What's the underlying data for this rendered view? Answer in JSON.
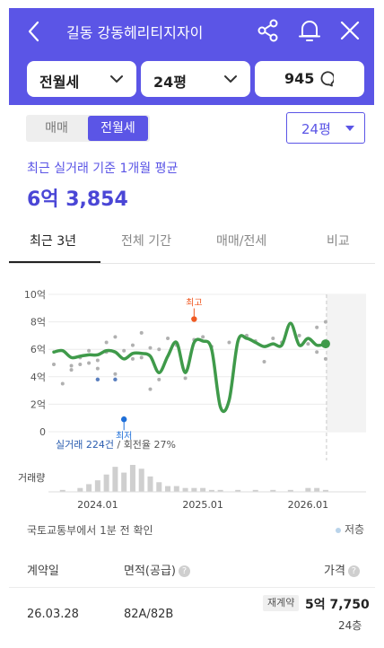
{
  "header": {
    "title": "길동 강동헤리티지자이",
    "filters": [
      {
        "label": "전월세"
      },
      {
        "label": "24평"
      },
      {
        "label": "945"
      }
    ]
  },
  "segment": {
    "options": [
      "매매",
      "전월세"
    ],
    "selected": "전월세"
  },
  "size_select": {
    "value": "24평"
  },
  "summary": {
    "label": "최근 실거래 기준 1개월 평균",
    "value": "6억 3,854"
  },
  "tabs": [
    {
      "label": "최근 3년",
      "active": true
    },
    {
      "label": "전체 기간",
      "active": false
    },
    {
      "label": "매매/전세",
      "active": false
    },
    {
      "label": "비교",
      "active": false
    }
  ],
  "colors": {
    "accent": "#5b55e6",
    "line": "#3f9a4a",
    "high": "#f05a23",
    "low": "#1e6fd9",
    "dots": "#b0b0b0",
    "blue_dots": "#5a7fbf"
  },
  "chart_data": {
    "type": "line",
    "y_ticks": [
      "10억",
      "8억",
      "6억",
      "4억",
      "2억",
      "0"
    ],
    "ylim": [
      0,
      10
    ],
    "x_ticks": [
      "2024.01",
      "2025.01",
      "2026.01"
    ],
    "xlim": [
      "2023.08",
      "2026.07"
    ],
    "volume_label": "거래량",
    "high_label": "최고",
    "low_label": "최저",
    "summary_count": "실거래 224건",
    "summary_turnover": "회전율 27%",
    "series": [
      {
        "values": [
          {
            "x": "2023.08",
            "y": 5.8
          },
          {
            "x": "2023.09",
            "y": 5.9
          },
          {
            "x": "2023.10",
            "y": 5.4
          },
          {
            "x": "2023.11",
            "y": 5.5
          },
          {
            "x": "2023.12",
            "y": 5.6
          },
          {
            "x": "2024.01",
            "y": 5.6
          },
          {
            "x": "2024.02",
            "y": 5.9
          },
          {
            "x": "2024.03",
            "y": 5.8
          },
          {
            "x": "2024.04",
            "y": 5.3
          },
          {
            "x": "2024.05",
            "y": 5.7
          },
          {
            "x": "2024.06",
            "y": 5.7
          },
          {
            "x": "2024.07",
            "y": 5.5
          },
          {
            "x": "2024.08",
            "y": 4.3
          },
          {
            "x": "2024.09",
            "y": 5.5
          },
          {
            "x": "2024.10",
            "y": 6.5
          },
          {
            "x": "2024.11",
            "y": 4.3
          },
          {
            "x": "2024.12",
            "y": 6.5
          },
          {
            "x": "2025.01",
            "y": 6.6
          },
          {
            "x": "2025.02",
            "y": 6.0
          },
          {
            "x": "2025.03",
            "y": 1.8
          },
          {
            "x": "2025.04",
            "y": 2.3
          },
          {
            "x": "2025.05",
            "y": 6.6
          },
          {
            "x": "2025.06",
            "y": 6.8
          },
          {
            "x": "2025.07",
            "y": 6.5
          },
          {
            "x": "2025.08",
            "y": 6.2
          },
          {
            "x": "2025.09",
            "y": 6.4
          },
          {
            "x": "2025.10",
            "y": 6.3
          },
          {
            "x": "2025.11",
            "y": 7.9
          },
          {
            "x": "2025.12",
            "y": 6.3
          },
          {
            "x": "2026.01",
            "y": 6.8
          },
          {
            "x": "2026.02",
            "y": 6.3
          },
          {
            "x": "2026.03",
            "y": 6.4
          }
        ]
      }
    ],
    "transactions": [
      {
        "x": "2023.08",
        "y": 4.9
      },
      {
        "x": "2023.09",
        "y": 3.5
      },
      {
        "x": "2023.10",
        "y": 4.8
      },
      {
        "x": "2023.10",
        "y": 4.5
      },
      {
        "x": "2023.11",
        "y": 5.4
      },
      {
        "x": "2023.11",
        "y": 4.9
      },
      {
        "x": "2023.12",
        "y": 5.0
      },
      {
        "x": "2023.12",
        "y": 5.9
      },
      {
        "x": "2024.01",
        "y": 5.2
      },
      {
        "x": "2024.01",
        "y": 4.6
      },
      {
        "x": "2024.02",
        "y": 6.5
      },
      {
        "x": "2024.02",
        "y": 5.8
      },
      {
        "x": "2024.03",
        "y": 6.9
      },
      {
        "x": "2024.03",
        "y": 4.2
      },
      {
        "x": "2024.04",
        "y": 1.0
      },
      {
        "x": "2024.04",
        "y": 5.9
      },
      {
        "x": "2024.05",
        "y": 6.3
      },
      {
        "x": "2024.05",
        "y": 5.3
      },
      {
        "x": "2024.06",
        "y": 7.2
      },
      {
        "x": "2024.06",
        "y": 5.4
      },
      {
        "x": "2024.07",
        "y": 6.1
      },
      {
        "x": "2024.07",
        "y": 3.1
      },
      {
        "x": "2024.08",
        "y": 6.0
      },
      {
        "x": "2024.08",
        "y": 3.8
      },
      {
        "x": "2024.09",
        "y": 6.8
      },
      {
        "x": "2024.10",
        "y": 6.3
      },
      {
        "x": "2024.11",
        "y": 3.9
      },
      {
        "x": "2024.12",
        "y": 6.7
      },
      {
        "x": "2025.01",
        "y": 6.9
      },
      {
        "x": "2025.02",
        "y": 6.2
      },
      {
        "x": "2025.04",
        "y": 6.5
      },
      {
        "x": "2025.06",
        "y": 7.0
      },
      {
        "x": "2025.07",
        "y": 6.6
      },
      {
        "x": "2025.08",
        "y": 5.1
      },
      {
        "x": "2025.09",
        "y": 6.8
      },
      {
        "x": "2025.10",
        "y": 6.5
      },
      {
        "x": "2025.12",
        "y": 7.0
      },
      {
        "x": "2026.01",
        "y": 6.4
      },
      {
        "x": "2026.02",
        "y": 7.6
      },
      {
        "x": "2026.02",
        "y": 5.8
      },
      {
        "x": "2026.03",
        "y": 8.0
      },
      {
        "x": "2026.03",
        "y": 5.3
      }
    ],
    "blue_transactions": [
      {
        "x": "2024.01",
        "y": 3.8
      },
      {
        "x": "2024.03",
        "y": 3.8
      }
    ],
    "high_point": {
      "x": "2024.12",
      "y": 8.2
    },
    "low_point": {
      "x": "2024.04",
      "y": 0.9
    },
    "latest_point": {
      "x": "2026.03",
      "y": 6.4
    },
    "volume": [
      {
        "x": "2023.09",
        "value": 1
      },
      {
        "x": "2023.11",
        "value": 2
      },
      {
        "x": "2023.12",
        "value": 4
      },
      {
        "x": "2024.01",
        "value": 6
      },
      {
        "x": "2024.02",
        "value": 9
      },
      {
        "x": "2024.03",
        "value": 13
      },
      {
        "x": "2024.04",
        "value": 10
      },
      {
        "x": "2024.05",
        "value": 14
      },
      {
        "x": "2024.06",
        "value": 12
      },
      {
        "x": "2024.07",
        "value": 8
      },
      {
        "x": "2024.08",
        "value": 5
      },
      {
        "x": "2024.09",
        "value": 3
      },
      {
        "x": "2024.10",
        "value": 3
      },
      {
        "x": "2024.11",
        "value": 2
      },
      {
        "x": "2024.12",
        "value": 2
      },
      {
        "x": "2025.01",
        "value": 2
      },
      {
        "x": "2025.02",
        "value": 1
      },
      {
        "x": "2025.03",
        "value": 1
      },
      {
        "x": "2025.05",
        "value": 1
      },
      {
        "x": "2025.07",
        "value": 1
      },
      {
        "x": "2025.09",
        "value": 1
      },
      {
        "x": "2025.11",
        "value": 1
      },
      {
        "x": "2026.01",
        "value": 2
      },
      {
        "x": "2026.02",
        "value": 2
      },
      {
        "x": "2026.03",
        "value": 1
      }
    ]
  },
  "source": "국토교통부에서 1분 전 확인",
  "legend": {
    "low_floor": "저층"
  },
  "table": {
    "headers": {
      "date": "계약일",
      "area": "면적(공급)",
      "price": "가격"
    },
    "help_icon": "?",
    "rows": [
      {
        "date": "26.03.28",
        "area": "82A/82B",
        "badge": "재계약",
        "price": "5억 7,750",
        "floor": "24층"
      }
    ]
  }
}
